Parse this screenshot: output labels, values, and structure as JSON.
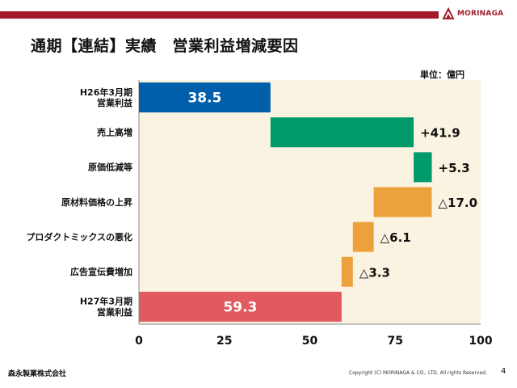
{
  "header": {
    "logo_text": "MORINAGA",
    "brand_color": "#a31b2a"
  },
  "title": "通期【連結】実績　営業利益増減要因",
  "unit_label": "単位：億円",
  "chart_data": {
    "type": "waterfall",
    "orientation": "horizontal",
    "xlim": [
      0,
      100
    ],
    "xticks": [
      "0",
      "25",
      "50",
      "75",
      "100"
    ],
    "grid": false,
    "plot_background": "#fbf3e2",
    "items": [
      {
        "label": [
          "H26年3月期",
          "営業利益"
        ],
        "start": 0,
        "end": 38.5,
        "value_label": "38.5",
        "color": "#005eab",
        "label_inside": true
      },
      {
        "label": [
          "売上高増"
        ],
        "start": 38.5,
        "end": 80.4,
        "value_label": "+41.9",
        "color": "#009a6b",
        "label_inside": false
      },
      {
        "label": [
          "原価低減等"
        ],
        "start": 80.4,
        "end": 85.7,
        "value_label": "+5.3",
        "color": "#009a6b",
        "label_inside": false
      },
      {
        "label": [
          "原材料価格の上昇"
        ],
        "start": 68.7,
        "end": 85.7,
        "value_label": "△17.0",
        "color": "#eca13d",
        "label_inside": false
      },
      {
        "label": [
          "プロダクトミックスの悪化"
        ],
        "start": 62.6,
        "end": 68.7,
        "value_label": "△6.1",
        "color": "#eca13d",
        "label_inside": false
      },
      {
        "label": [
          "広告宣伝費増加"
        ],
        "start": 59.3,
        "end": 62.6,
        "value_label": "△3.3",
        "color": "#eca13d",
        "label_inside": false
      },
      {
        "label": [
          "H27年3月期",
          "営業利益"
        ],
        "start": 0,
        "end": 59.3,
        "value_label": "59.3",
        "color": "#e05a60",
        "label_inside": true
      }
    ]
  },
  "footer": {
    "company": "森永製菓株式会社",
    "copyright": "Copyright (C) MORINAGA & CO., LTD. All rights Reserved.",
    "page": "4"
  }
}
